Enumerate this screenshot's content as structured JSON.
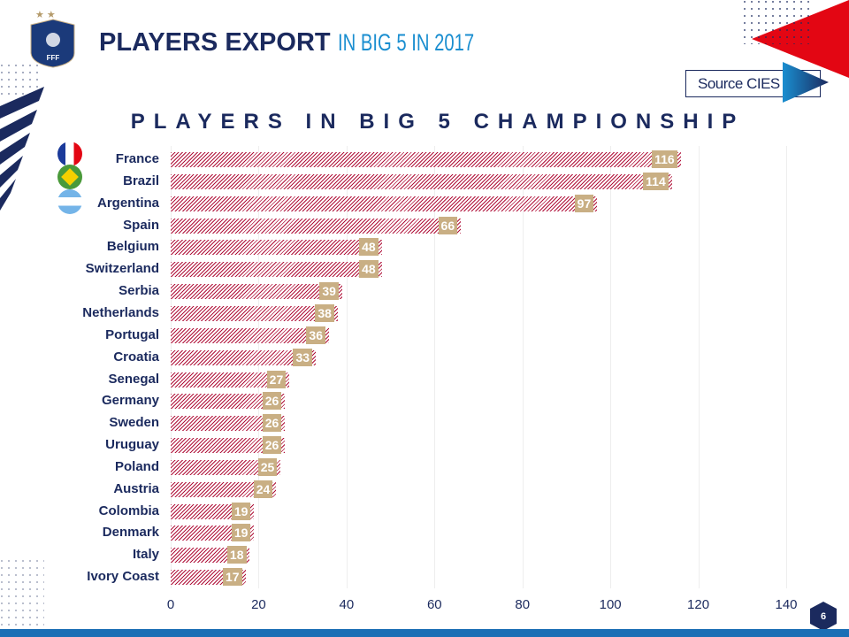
{
  "header": {
    "title_main": "PLAYERS EXPORT",
    "title_sub": "IN BIG 5 IN 2017",
    "logo_text": "FFF",
    "source": "Source CIES FIFA",
    "page_number": "6"
  },
  "colors": {
    "navy": "#1b2a5e",
    "red": "#e30613",
    "bar": "#b0123a",
    "label_bg": "#c9af84"
  },
  "chart_data": {
    "type": "bar",
    "orientation": "horizontal",
    "title": "PLAYERS IN BIG 5 CHAMPIONSHIP",
    "categories": [
      "France",
      "Brazil",
      "Argentina",
      "Spain",
      "Belgium",
      "Switzerland",
      "Serbia",
      "Netherlands",
      "Portugal",
      "Croatia",
      "Senegal",
      "Germany",
      "Sweden",
      "Uruguay",
      "Poland",
      "Austria",
      "Colombia",
      "Denmark",
      "Italy",
      "Ivory Coast"
    ],
    "values": [
      116,
      114,
      97,
      66,
      48,
      48,
      39,
      38,
      36,
      33,
      27,
      26,
      26,
      26,
      25,
      24,
      19,
      19,
      18,
      17
    ],
    "xlim": [
      0,
      140
    ],
    "xticks": [
      "0",
      "20",
      "40",
      "60",
      "80",
      "100",
      "120",
      "140"
    ],
    "grid": true
  }
}
